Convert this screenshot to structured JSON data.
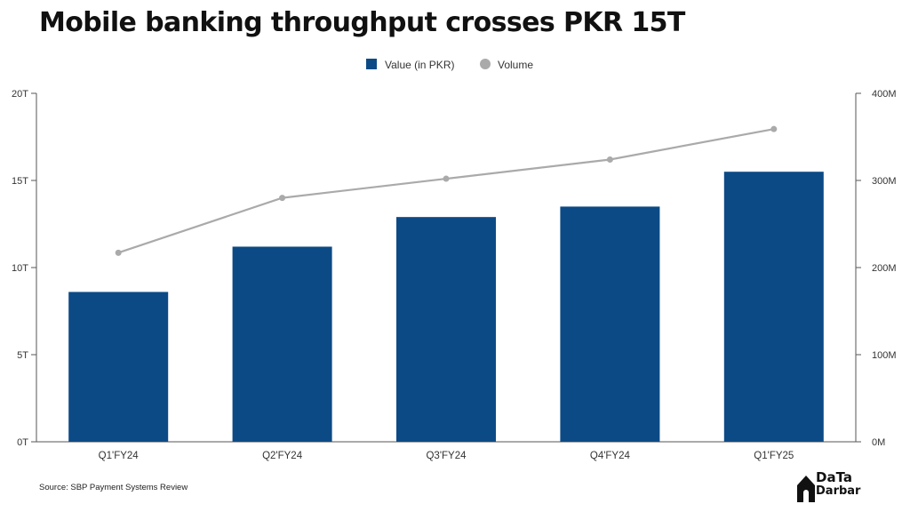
{
  "title": "Mobile banking throughput crosses PKR 15T",
  "source": "Source: SBP Payment Systems Review",
  "logo": {
    "line1": "DaTa",
    "line2": "Darbar",
    "icon": "house-icon"
  },
  "colors": {
    "bar": "#0c4a86",
    "line": "#aaaaaa",
    "axis": "#555555",
    "text": "#333333"
  },
  "chart_data": {
    "type": "bar",
    "categories": [
      "Q1'FY24",
      "Q2'FY24",
      "Q3'FY24",
      "Q4'FY24",
      "Q1'FY25"
    ],
    "series": [
      {
        "name": "Value (in PKR)",
        "type": "bar",
        "axis": "left",
        "values": [
          8.6,
          11.2,
          12.9,
          13.5,
          15.5
        ]
      },
      {
        "name": "Volume",
        "type": "line",
        "axis": "right",
        "values": [
          217,
          280,
          302,
          324,
          359
        ]
      }
    ],
    "y_left": {
      "ylim": [
        0,
        20
      ],
      "ticks": [
        "0T",
        "5T",
        "10T",
        "15T",
        "20T"
      ]
    },
    "y_right": {
      "ylim": [
        0,
        400
      ],
      "ticks": [
        "0M",
        "100M",
        "200M",
        "300M",
        "400M"
      ]
    },
    "legend": "top-center",
    "grid": false
  }
}
